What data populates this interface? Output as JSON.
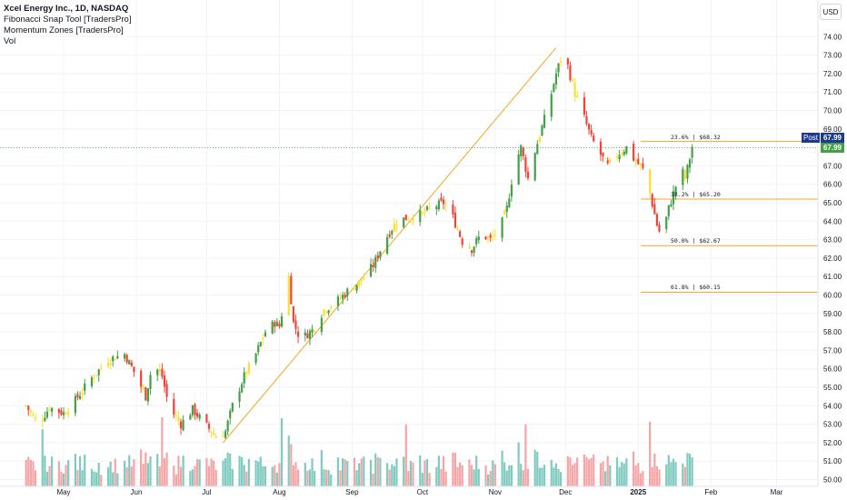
{
  "header": {
    "symbol_line": "Xcel Energy Inc., 1D, NASDAQ",
    "indicator_1": "Fibonacci Snap Tool [TradersPro]",
    "indicator_2": "Momentum Zones [TradersPro]",
    "indicator_3": "Vol"
  },
  "currency_button": "USD",
  "price_tags": {
    "last_price": "67.99",
    "post_label": "Post",
    "post_price": "67.99"
  },
  "colors": {
    "up": "#43a047",
    "down": "#f44336",
    "neutral": "#fbe02c",
    "fib_line": "#f5a623",
    "trend_line": "#f5a623",
    "vol_up": "#7fcbbf",
    "vol_down": "#f4a5a5",
    "price_line": "#2e7d32"
  },
  "chart_data": {
    "type": "candlestick",
    "instrument": "Xcel Energy Inc.",
    "interval": "1D",
    "exchange": "NASDAQ",
    "y_axis": {
      "range": [
        50.0,
        75.0
      ],
      "ticks": [
        "50.00",
        "51.00",
        "52.00",
        "53.00",
        "54.00",
        "55.00",
        "56.00",
        "57.00",
        "58.00",
        "59.00",
        "60.00",
        "61.00",
        "62.00",
        "63.00",
        "64.00",
        "65.00",
        "66.00",
        "67.00",
        "68.00",
        "69.00",
        "70.00",
        "71.00",
        "72.00",
        "73.00",
        "74.00"
      ]
    },
    "x_axis": {
      "ticks": [
        {
          "label": "May",
          "date": "2024-05-01"
        },
        {
          "label": "Jun",
          "date": "2024-06-01"
        },
        {
          "label": "Jul",
          "date": "2024-07-01"
        },
        {
          "label": "Aug",
          "date": "2024-08-01"
        },
        {
          "label": "Sep",
          "date": "2024-09-01"
        },
        {
          "label": "Oct",
          "date": "2024-10-01"
        },
        {
          "label": "Nov",
          "date": "2024-11-01"
        },
        {
          "label": "Dec",
          "date": "2024-12-01"
        },
        {
          "label": "2025",
          "date": "2025-01-01"
        },
        {
          "label": "Feb",
          "date": "2025-02-01"
        },
        {
          "label": "Mar",
          "date": "2025-03-01"
        }
      ]
    },
    "last_close": 67.99,
    "trend_line": {
      "from": {
        "date": "2024-07-08",
        "price": 52.0
      },
      "to": {
        "date": "2024-11-27",
        "price": 73.4
      }
    },
    "fib_levels": [
      {
        "label": "23.6% | $68.32",
        "price": 68.32
      },
      {
        "label": "38.2% | $65.20",
        "price": 65.2
      },
      {
        "label": "50.0% | $62.67",
        "price": 62.67
      },
      {
        "label": "61.8% | $60.15",
        "price": 60.15
      }
    ],
    "price_path": [
      [
        "2024-04-15",
        54.0
      ],
      [
        "2024-04-20",
        53.0
      ],
      [
        "2024-04-25",
        53.9
      ],
      [
        "2024-05-01",
        53.6
      ],
      [
        "2024-05-06",
        54.3
      ],
      [
        "2024-05-13",
        55.5
      ],
      [
        "2024-05-20",
        56.5
      ],
      [
        "2024-05-27",
        56.8
      ],
      [
        "2024-06-01",
        55.6
      ],
      [
        "2024-06-05",
        54.5
      ],
      [
        "2024-06-08",
        56.3
      ],
      [
        "2024-06-12",
        55.6
      ],
      [
        "2024-06-15",
        53.9
      ],
      [
        "2024-06-20",
        53.0
      ],
      [
        "2024-06-25",
        53.8
      ],
      [
        "2024-07-01",
        52.9
      ],
      [
        "2024-07-05",
        52.3
      ],
      [
        "2024-07-09",
        52.6
      ],
      [
        "2024-07-12",
        54.0
      ],
      [
        "2024-07-17",
        55.6
      ],
      [
        "2024-07-22",
        56.8
      ],
      [
        "2024-07-26",
        58.0
      ],
      [
        "2024-07-30",
        58.5
      ],
      [
        "2024-08-01",
        58.3
      ],
      [
        "2024-08-05",
        61.0
      ],
      [
        "2024-08-07",
        58.5
      ],
      [
        "2024-08-10",
        57.6
      ],
      [
        "2024-08-15",
        58.1
      ],
      [
        "2024-08-20",
        59.2
      ],
      [
        "2024-08-25",
        59.6
      ],
      [
        "2024-08-30",
        60.2
      ],
      [
        "2024-09-05",
        60.8
      ],
      [
        "2024-09-10",
        61.6
      ],
      [
        "2024-09-15",
        63.0
      ],
      [
        "2024-09-20",
        64.0
      ],
      [
        "2024-09-25",
        64.2
      ],
      [
        "2024-10-01",
        64.4
      ],
      [
        "2024-10-06",
        64.8
      ],
      [
        "2024-10-10",
        65.0
      ],
      [
        "2024-10-14",
        64.2
      ],
      [
        "2024-10-18",
        62.9
      ],
      [
        "2024-10-22",
        62.5
      ],
      [
        "2024-10-26",
        63.3
      ],
      [
        "2024-10-30",
        63.0
      ],
      [
        "2024-11-03",
        63.6
      ],
      [
        "2024-11-06",
        64.7
      ],
      [
        "2024-11-09",
        66.9
      ],
      [
        "2024-11-12",
        68.0
      ],
      [
        "2024-11-15",
        66.3
      ],
      [
        "2024-11-18",
        67.8
      ],
      [
        "2024-11-21",
        69.1
      ],
      [
        "2024-11-24",
        70.4
      ],
      [
        "2024-11-27",
        72.0
      ],
      [
        "2024-11-29",
        72.8
      ],
      [
        "2024-12-02",
        72.4
      ],
      [
        "2024-12-05",
        70.9
      ],
      [
        "2024-12-09",
        69.6
      ],
      [
        "2024-12-12",
        68.5
      ],
      [
        "2024-12-16",
        67.6
      ],
      [
        "2024-12-19",
        67.0
      ],
      [
        "2024-12-23",
        67.6
      ],
      [
        "2024-12-27",
        68.0
      ],
      [
        "2024-12-30",
        67.4
      ],
      [
        "2025-01-03",
        66.8
      ],
      [
        "2025-01-06",
        65.5
      ],
      [
        "2025-01-09",
        63.8
      ],
      [
        "2025-01-11",
        63.1
      ],
      [
        "2025-01-14",
        64.7
      ],
      [
        "2025-01-17",
        65.9
      ],
      [
        "2025-01-19",
        67.0
      ],
      [
        "2025-01-21",
        66.3
      ],
      [
        "2025-01-24",
        67.99
      ]
    ]
  }
}
